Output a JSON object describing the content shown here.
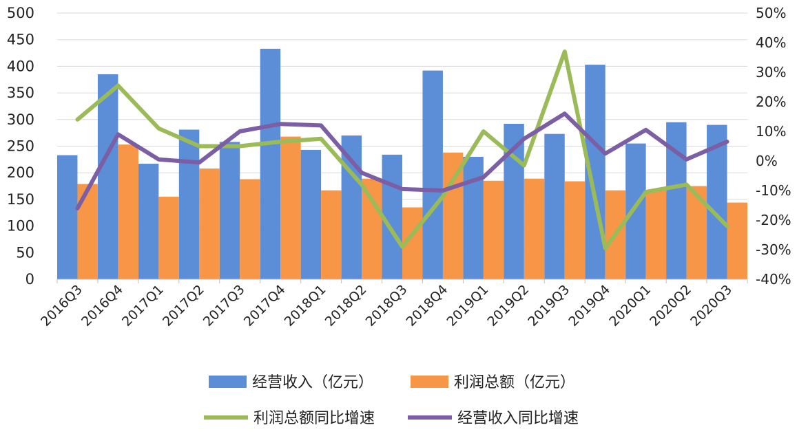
{
  "chart_data": {
    "type": "bar",
    "categories": [
      "2016Q3",
      "2016Q4",
      "2017Q1",
      "2017Q2",
      "2017Q3",
      "2017Q4",
      "2018Q1",
      "2018Q2",
      "2018Q3",
      "2018Q4",
      "2019Q1",
      "2019Q2",
      "2019Q3",
      "2019Q4",
      "2020Q1",
      "2020Q2",
      "2020Q3"
    ],
    "series": [
      {
        "name": "经营收入（亿元）",
        "kind": "bar",
        "axis": "left",
        "color": "#5B8ED6",
        "values": [
          233,
          385,
          217,
          281,
          258,
          433,
          243,
          270,
          234,
          392,
          230,
          292,
          273,
          403,
          255,
          295,
          290
        ]
      },
      {
        "name": "利润总额（亿元）",
        "kind": "bar",
        "axis": "left",
        "color": "#F79646",
        "values": [
          179,
          253,
          155,
          208,
          188,
          268,
          167,
          189,
          135,
          238,
          185,
          189,
          184,
          167,
          167,
          175,
          144
        ]
      },
      {
        "name": "利润总额同比增速",
        "kind": "line",
        "axis": "right",
        "color": "#9BBB59",
        "values": [
          14,
          25.5,
          11,
          5,
          5,
          6.5,
          7.5,
          -8,
          -29,
          -12,
          10,
          -1.5,
          37,
          -29.5,
          -10.5,
          -8,
          -22
        ]
      },
      {
        "name": "经营收入同比增速",
        "kind": "line",
        "axis": "right",
        "color": "#7B5EA3",
        "values": [
          -16,
          9,
          0.5,
          -0.5,
          10,
          12.5,
          12,
          -4,
          -9.5,
          -10,
          -5.5,
          7.5,
          16,
          2.5,
          10.5,
          0.5,
          6.5
        ]
      }
    ],
    "y_left": {
      "min": 0,
      "max": 500,
      "ticks": [
        "0",
        "50",
        "100",
        "150",
        "200",
        "250",
        "300",
        "350",
        "400",
        "450",
        "500"
      ]
    },
    "y_right": {
      "min": -40,
      "max": 50,
      "ticks": [
        "-40%",
        "-30%",
        "-20%",
        "-10%",
        "0%",
        "10%",
        "20%",
        "30%",
        "40%",
        "50%"
      ]
    },
    "grid": true,
    "legend_position": "bottom",
    "title": "",
    "xlabel": "",
    "ylabel": ""
  }
}
